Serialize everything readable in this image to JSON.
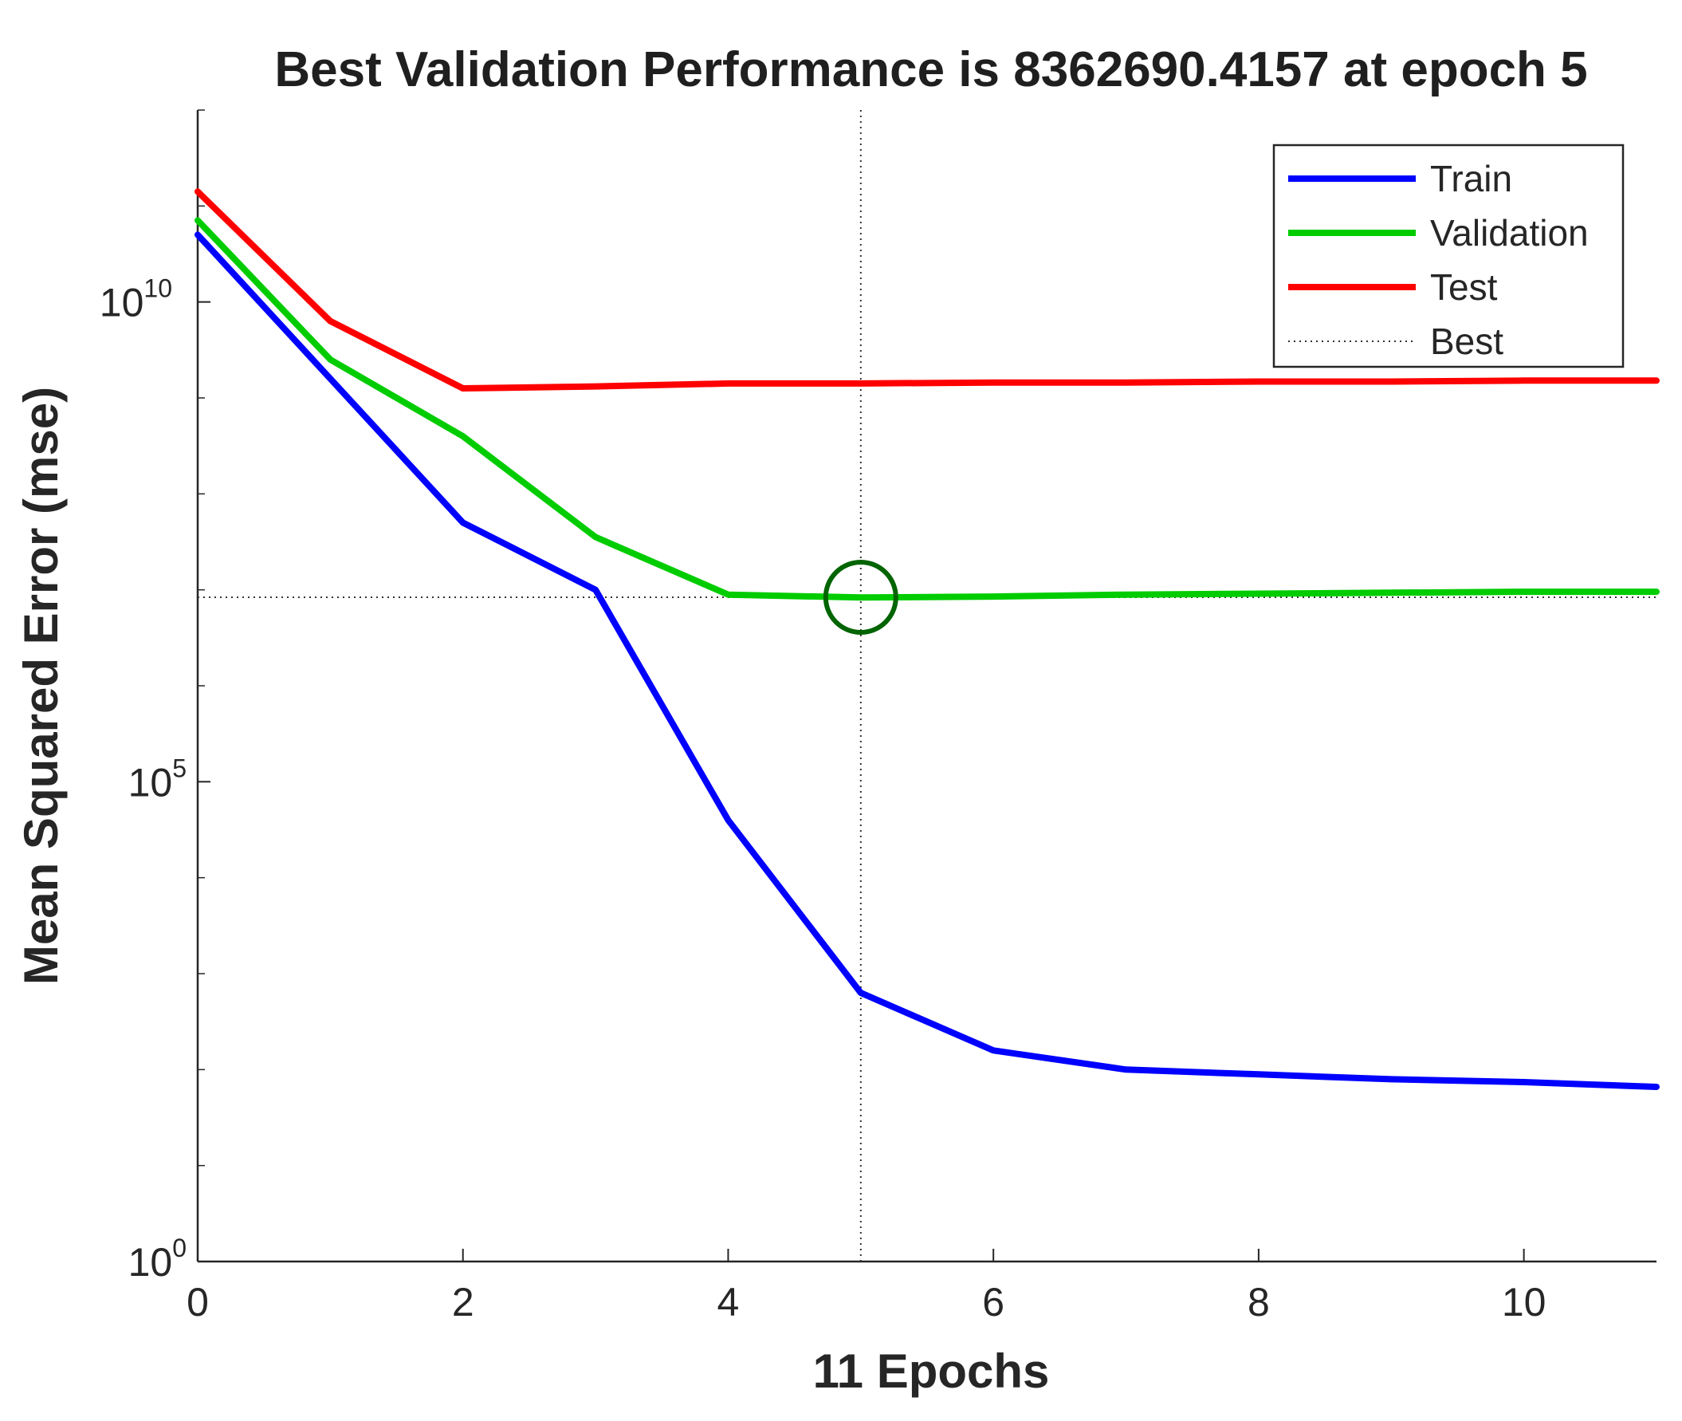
{
  "chart_data": {
    "type": "line",
    "title": "Best Validation Performance is 8362690.4157 at epoch 5",
    "xlabel": "11 Epochs",
    "ylabel": "Mean Squared Error  (mse)",
    "yscale": "log",
    "xlim": [
      0,
      11
    ],
    "ylim_log10": [
      0,
      12
    ],
    "x_ticks": [
      0,
      2,
      4,
      6,
      8,
      10
    ],
    "x_tick_labels": [
      "0",
      "2",
      "4",
      "6",
      "8",
      "10"
    ],
    "y_ticks": [
      {
        "base": "10",
        "exp": "0",
        "log10": 0
      },
      {
        "base": "10",
        "exp": "5",
        "log10": 5
      },
      {
        "base": "10",
        "exp": "10",
        "log10": 10
      }
    ],
    "epochs": [
      0,
      1,
      2,
      3,
      4,
      5,
      6,
      7,
      8,
      9,
      10,
      11
    ],
    "series": [
      {
        "name": "Train",
        "color": "#0000ff",
        "log10_values": [
          10.7,
          9.2,
          7.7,
          7.0,
          4.6,
          2.8,
          2.2,
          2.0,
          1.95,
          1.9,
          1.87,
          1.82
        ]
      },
      {
        "name": "Validation",
        "color": "#00cc00",
        "log10_values": [
          10.85,
          9.4,
          8.6,
          7.55,
          6.95,
          6.92,
          6.93,
          6.95,
          6.96,
          6.97,
          6.98,
          6.98
        ]
      },
      {
        "name": "Test",
        "color": "#ff0000",
        "log10_values": [
          11.15,
          9.8,
          9.1,
          9.12,
          9.15,
          9.15,
          9.16,
          9.16,
          9.17,
          9.17,
          9.18,
          9.18
        ]
      }
    ],
    "best": {
      "label": "Best",
      "epoch": 5,
      "value": 8362690.4157,
      "marker_color": "#006400",
      "line_color": "#333333"
    },
    "legend": {
      "position": "top-right",
      "entries": [
        "Train",
        "Validation",
        "Test",
        "Best"
      ]
    },
    "grid": false
  }
}
